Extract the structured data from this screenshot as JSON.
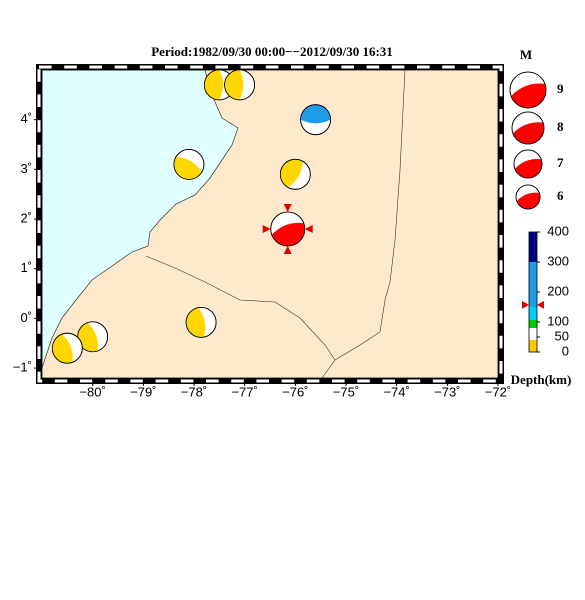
{
  "title": "Period:1982/09/30 00:00−−2012/09/30 16:31",
  "map": {
    "lonlim": [
      -81,
      -72
    ],
    "latlim": [
      -1.2,
      5
    ],
    "lon_ticks": [
      {
        "value": -80,
        "label": "−80˚"
      },
      {
        "value": -79,
        "label": "−79˚"
      },
      {
        "value": -78,
        "label": "−78˚"
      },
      {
        "value": -77,
        "label": "−77˚"
      },
      {
        "value": -76,
        "label": "−76˚"
      },
      {
        "value": -75,
        "label": "−75˚"
      },
      {
        "value": -74,
        "label": "−74˚"
      },
      {
        "value": -73,
        "label": "−73˚"
      },
      {
        "value": -72,
        "label": "−72˚"
      }
    ],
    "lat_ticks": [
      {
        "value": -1,
        "label": "−1˚"
      },
      {
        "value": 0,
        "label": "0˚"
      },
      {
        "value": 1,
        "label": "1˚"
      },
      {
        "value": 2,
        "label": "2˚"
      },
      {
        "value": 3,
        "label": "3˚"
      },
      {
        "value": 4,
        "label": "4˚"
      }
    ],
    "events": [
      {
        "lon": -77.5,
        "lat": 4.7,
        "depth": 20,
        "mag": 7.5,
        "color": "#ffd700",
        "rot": 90
      },
      {
        "lon": -77.1,
        "lat": 4.7,
        "depth": 20,
        "mag": 7.5,
        "color": "#ffd700",
        "rot": 90
      },
      {
        "lon": -75.6,
        "lat": 4.0,
        "depth": 160,
        "mag": 7.5,
        "color": "#1e9be9",
        "rot": 180
      },
      {
        "lon": -78.1,
        "lat": 3.1,
        "depth": 20,
        "mag": 7.5,
        "color": "#ffd700",
        "rot": 30
      },
      {
        "lon": -76.0,
        "lat": 2.9,
        "depth": 20,
        "mag": 7.5,
        "color": "#ffd700",
        "rot": 120
      },
      {
        "lon": -76.15,
        "lat": 1.8,
        "depth": 157,
        "mag": 8.5,
        "color": "#ff0000",
        "rot": -20
      },
      {
        "lon": -77.86,
        "lat": -0.08,
        "depth": 20,
        "mag": 7.5,
        "color": "#ffd700",
        "rot": 80
      },
      {
        "lon": -80.0,
        "lat": -0.37,
        "depth": 20,
        "mag": 7.5,
        "color": "#ffd700",
        "rot": 70
      },
      {
        "lon": -80.5,
        "lat": -0.6,
        "depth": 20,
        "mag": 7.5,
        "color": "#ffd700",
        "rot": 70
      }
    ]
  },
  "magnitude_legend": {
    "title": "M",
    "mags": [
      9,
      8,
      7,
      6
    ]
  },
  "depth_scale": {
    "label": "Depth(km)",
    "lim": [
      0,
      400
    ],
    "ticks": [
      0,
      50,
      100,
      200,
      300,
      400
    ],
    "marker": 157
  }
}
